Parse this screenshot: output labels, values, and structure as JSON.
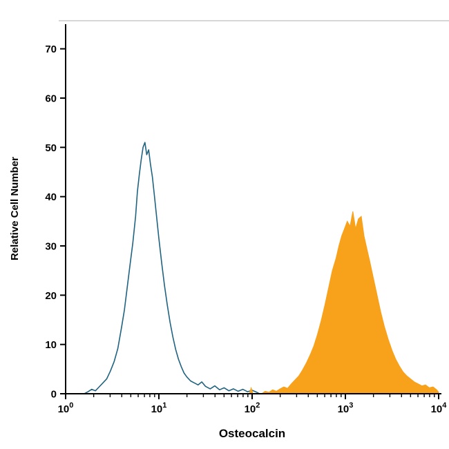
{
  "chart_data": {
    "type": "area",
    "subtype": "flow-cytometry-histogram-overlay",
    "title": "",
    "xlabel": "Osteocalcin",
    "ylabel": "Relative Cell Number",
    "x_scale": "log10",
    "xlim_log10": [
      0,
      4
    ],
    "ylim": [
      0,
      75
    ],
    "x_major_ticks_exponents": [
      0,
      1,
      2,
      3,
      4
    ],
    "x_tick_base": "10",
    "y_ticks": [
      0,
      10,
      20,
      30,
      40,
      50,
      60,
      70
    ],
    "grid": false,
    "legend": "none",
    "colors": {
      "axis": "#000000",
      "background": "#ffffff",
      "top_border": "#c9c9c9",
      "open_histogram": "#1f6380",
      "filled_histogram": "#F8A11B"
    },
    "series": [
      {
        "name": "control-open-histogram",
        "style": "open",
        "color": "#1f6380",
        "peak": {
          "log10x": 0.85,
          "height": 51
        },
        "points_log10x_y": [
          [
            0.2,
            0
          ],
          [
            0.24,
            0.4
          ],
          [
            0.28,
            0.9
          ],
          [
            0.32,
            0.6
          ],
          [
            0.36,
            1.4
          ],
          [
            0.4,
            2.2
          ],
          [
            0.44,
            3.0
          ],
          [
            0.48,
            4.6
          ],
          [
            0.52,
            6.5
          ],
          [
            0.56,
            9.2
          ],
          [
            0.6,
            13.5
          ],
          [
            0.63,
            17.0
          ],
          [
            0.66,
            21.5
          ],
          [
            0.69,
            26.0
          ],
          [
            0.72,
            30.5
          ],
          [
            0.75,
            36.0
          ],
          [
            0.77,
            41.0
          ],
          [
            0.79,
            44.5
          ],
          [
            0.81,
            47.5
          ],
          [
            0.83,
            50.0
          ],
          [
            0.85,
            51.0
          ],
          [
            0.87,
            48.5
          ],
          [
            0.89,
            49.5
          ],
          [
            0.91,
            46.5
          ],
          [
            0.93,
            44.0
          ],
          [
            0.95,
            40.5
          ],
          [
            0.97,
            37.0
          ],
          [
            1.0,
            31.5
          ],
          [
            1.03,
            26.5
          ],
          [
            1.06,
            22.0
          ],
          [
            1.09,
            18.0
          ],
          [
            1.12,
            14.5
          ],
          [
            1.15,
            11.5
          ],
          [
            1.18,
            9.0
          ],
          [
            1.21,
            7.0
          ],
          [
            1.24,
            5.5
          ],
          [
            1.27,
            4.2
          ],
          [
            1.3,
            3.4
          ],
          [
            1.34,
            2.6
          ],
          [
            1.38,
            2.2
          ],
          [
            1.42,
            1.8
          ],
          [
            1.46,
            2.4
          ],
          [
            1.5,
            1.5
          ],
          [
            1.55,
            1.0
          ],
          [
            1.6,
            1.6
          ],
          [
            1.65,
            0.8
          ],
          [
            1.7,
            1.2
          ],
          [
            1.75,
            0.6
          ],
          [
            1.8,
            1.0
          ],
          [
            1.85,
            0.5
          ],
          [
            1.9,
            0.9
          ],
          [
            1.95,
            0.4
          ],
          [
            2.0,
            0.7
          ],
          [
            2.05,
            0.3
          ],
          [
            2.08,
            0
          ]
        ]
      },
      {
        "name": "osteocalcin-stained-filled-histogram",
        "style": "filled",
        "color": "#F8A11B",
        "peak": {
          "log10x": 3.08,
          "height": 37
        },
        "points_log10x_y": [
          [
            1.97,
            0
          ],
          [
            1.99,
            1.2
          ],
          [
            2.01,
            0
          ],
          [
            2.1,
            0
          ],
          [
            2.14,
            0.5
          ],
          [
            2.18,
            0.3
          ],
          [
            2.22,
            0.8
          ],
          [
            2.26,
            0.5
          ],
          [
            2.3,
            1.0
          ],
          [
            2.34,
            1.4
          ],
          [
            2.38,
            1.1
          ],
          [
            2.42,
            2.0
          ],
          [
            2.46,
            2.8
          ],
          [
            2.5,
            3.6
          ],
          [
            2.54,
            4.8
          ],
          [
            2.58,
            6.2
          ],
          [
            2.62,
            7.8
          ],
          [
            2.66,
            9.6
          ],
          [
            2.7,
            12.0
          ],
          [
            2.74,
            14.8
          ],
          [
            2.78,
            18.0
          ],
          [
            2.82,
            21.5
          ],
          [
            2.86,
            25.0
          ],
          [
            2.9,
            27.5
          ],
          [
            2.93,
            30.0
          ],
          [
            2.96,
            32.0
          ],
          [
            2.99,
            33.5
          ],
          [
            3.02,
            35.0
          ],
          [
            3.05,
            34.0
          ],
          [
            3.08,
            37.0
          ],
          [
            3.11,
            33.5
          ],
          [
            3.14,
            35.5
          ],
          [
            3.17,
            36.0
          ],
          [
            3.2,
            32.0
          ],
          [
            3.23,
            29.5
          ],
          [
            3.26,
            27.0
          ],
          [
            3.3,
            23.5
          ],
          [
            3.34,
            20.0
          ],
          [
            3.38,
            16.5
          ],
          [
            3.42,
            13.5
          ],
          [
            3.46,
            11.0
          ],
          [
            3.5,
            8.8
          ],
          [
            3.54,
            7.0
          ],
          [
            3.58,
            5.6
          ],
          [
            3.62,
            4.4
          ],
          [
            3.66,
            3.6
          ],
          [
            3.7,
            3.0
          ],
          [
            3.74,
            2.4
          ],
          [
            3.78,
            2.0
          ],
          [
            3.82,
            1.6
          ],
          [
            3.86,
            1.8
          ],
          [
            3.9,
            1.2
          ],
          [
            3.94,
            1.4
          ],
          [
            3.98,
            0.8
          ],
          [
            4.0,
            0.3
          ]
        ]
      }
    ]
  }
}
